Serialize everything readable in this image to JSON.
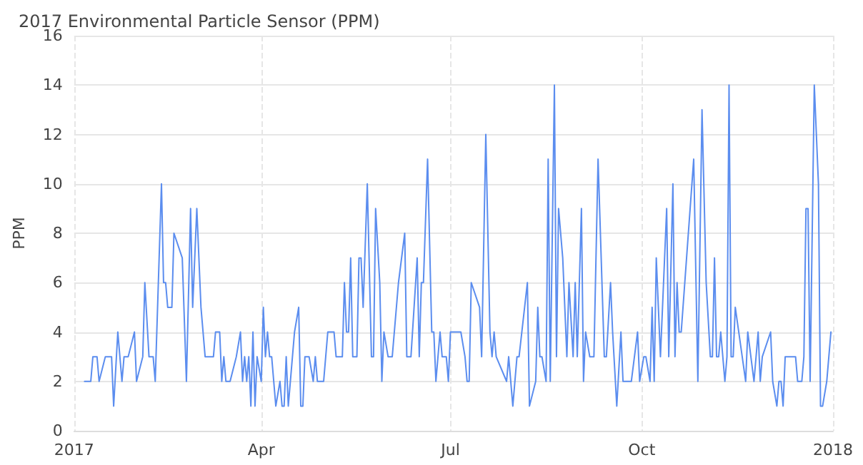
{
  "chart_data": {
    "type": "line",
    "title": "2017 Environmental Particle Sensor (PPM)",
    "ylabel": "PPM",
    "xlim": [
      "2017-01-01",
      "2018-01-01"
    ],
    "xticks": [
      {
        "value": "2017-01-01",
        "label": "2017"
      },
      {
        "value": "2017-04-01",
        "label": "Apr"
      },
      {
        "value": "2017-07-01",
        "label": "Jul"
      },
      {
        "value": "2017-10-01",
        "label": "Oct"
      },
      {
        "value": "2018-01-01",
        "label": "2018"
      }
    ],
    "ylim": [
      0,
      16
    ],
    "yticks": [
      0,
      2,
      4,
      6,
      8,
      10,
      12,
      14,
      16
    ],
    "grid": true,
    "marker": "none",
    "line_style": "solid",
    "series": [
      {
        "color": "#5b8def",
        "x": [
          "2017-01-06",
          "2017-01-09",
          "2017-01-10",
          "2017-01-12",
          "2017-01-13",
          "2017-01-16",
          "2017-01-19",
          "2017-01-20",
          "2017-01-22",
          "2017-01-24",
          "2017-01-25",
          "2017-01-27",
          "2017-01-30",
          "2017-01-31",
          "2017-02-03",
          "2017-02-04",
          "2017-02-06",
          "2017-02-08",
          "2017-02-09",
          "2017-02-12",
          "2017-02-13",
          "2017-02-14",
          "2017-02-15",
          "2017-02-17",
          "2017-02-18",
          "2017-02-22",
          "2017-02-24",
          "2017-02-26",
          "2017-02-27",
          "2017-03-01",
          "2017-03-03",
          "2017-03-05",
          "2017-03-09",
          "2017-03-10",
          "2017-03-12",
          "2017-03-13",
          "2017-03-14",
          "2017-03-15",
          "2017-03-17",
          "2017-03-20",
          "2017-03-22",
          "2017-03-23",
          "2017-03-24",
          "2017-03-25",
          "2017-03-26",
          "2017-03-27",
          "2017-03-28",
          "2017-03-29",
          "2017-03-30",
          "2017-04-01",
          "2017-04-02",
          "2017-04-03",
          "2017-04-04",
          "2017-04-05",
          "2017-04-06",
          "2017-04-08",
          "2017-04-10",
          "2017-04-11",
          "2017-04-12",
          "2017-04-13",
          "2017-04-14",
          "2017-04-17",
          "2017-04-19",
          "2017-04-20",
          "2017-04-21",
          "2017-04-22",
          "2017-04-24",
          "2017-04-26",
          "2017-04-27",
          "2017-04-28",
          "2017-04-29",
          "2017-05-01",
          "2017-05-02",
          "2017-05-03",
          "2017-05-06",
          "2017-05-07",
          "2017-05-10",
          "2017-05-11",
          "2017-05-12",
          "2017-05-13",
          "2017-05-14",
          "2017-05-15",
          "2017-05-17",
          "2017-05-18",
          "2017-05-19",
          "2017-05-20",
          "2017-05-22",
          "2017-05-24",
          "2017-05-25",
          "2017-05-26",
          "2017-05-28",
          "2017-05-29",
          "2017-05-30",
          "2017-06-01",
          "2017-06-03",
          "2017-06-06",
          "2017-06-09",
          "2017-06-10",
          "2017-06-12",
          "2017-06-15",
          "2017-06-16",
          "2017-06-17",
          "2017-06-18",
          "2017-06-20",
          "2017-06-22",
          "2017-06-23",
          "2017-06-24",
          "2017-06-26",
          "2017-06-27",
          "2017-06-29",
          "2017-06-30",
          "2017-07-01",
          "2017-07-06",
          "2017-07-08",
          "2017-07-09",
          "2017-07-10",
          "2017-07-11",
          "2017-07-15",
          "2017-07-16",
          "2017-07-18",
          "2017-07-20",
          "2017-07-21",
          "2017-07-22",
          "2017-07-23",
          "2017-07-28",
          "2017-07-29",
          "2017-07-31",
          "2017-08-02",
          "2017-08-03",
          "2017-08-07",
          "2017-08-08",
          "2017-08-11",
          "2017-08-12",
          "2017-08-13",
          "2017-08-14",
          "2017-08-16",
          "2017-08-17",
          "2017-08-18",
          "2017-08-20",
          "2017-08-21",
          "2017-08-22",
          "2017-08-24",
          "2017-08-26",
          "2017-08-27",
          "2017-08-29",
          "2017-08-30",
          "2017-08-31",
          "2017-09-02",
          "2017-09-03",
          "2017-09-04",
          "2017-09-06",
          "2017-09-08",
          "2017-09-10",
          "2017-09-13",
          "2017-09-14",
          "2017-09-16",
          "2017-09-17",
          "2017-09-19",
          "2017-09-21",
          "2017-09-22",
          "2017-09-26",
          "2017-09-29",
          "2017-09-30",
          "2017-10-02",
          "2017-10-03",
          "2017-10-05",
          "2017-10-06",
          "2017-10-07",
          "2017-10-08",
          "2017-10-09",
          "2017-10-10",
          "2017-10-13",
          "2017-10-14",
          "2017-10-16",
          "2017-10-17",
          "2017-10-18",
          "2017-10-19",
          "2017-10-20",
          "2017-10-26",
          "2017-10-28",
          "2017-10-30",
          "2017-11-01",
          "2017-11-03",
          "2017-11-04",
          "2017-11-05",
          "2017-11-06",
          "2017-11-07",
          "2017-11-08",
          "2017-11-10",
          "2017-11-11",
          "2017-11-12",
          "2017-11-13",
          "2017-11-14",
          "2017-11-15",
          "2017-11-20",
          "2017-11-21",
          "2017-11-24",
          "2017-11-26",
          "2017-11-27",
          "2017-11-28",
          "2017-12-02",
          "2017-12-03",
          "2017-12-05",
          "2017-12-06",
          "2017-12-07",
          "2017-12-08",
          "2017-12-09",
          "2017-12-14",
          "2017-12-15",
          "2017-12-17",
          "2017-12-18",
          "2017-12-19",
          "2017-12-20",
          "2017-12-21",
          "2017-12-23",
          "2017-12-25",
          "2017-12-26",
          "2017-12-27",
          "2017-12-29",
          "2017-12-31"
        ],
        "values": [
          2,
          2,
          3,
          3,
          2,
          3,
          3,
          1,
          4,
          2,
          3,
          3,
          4,
          2,
          3,
          6,
          3,
          3,
          2,
          10,
          6,
          6,
          5,
          5,
          8,
          7,
          2,
          9,
          5,
          9,
          5,
          3,
          3,
          4,
          4,
          2,
          3,
          2,
          2,
          3,
          4,
          2,
          3,
          2,
          3,
          1,
          4,
          1,
          3,
          2,
          5,
          3,
          4,
          3,
          3,
          1,
          2,
          1,
          1,
          3,
          1,
          4,
          5,
          1,
          1,
          3,
          3,
          2,
          3,
          2,
          2,
          2,
          3,
          4,
          4,
          3,
          3,
          6,
          4,
          4,
          7,
          3,
          3,
          7,
          7,
          5,
          10,
          3,
          3,
          9,
          6,
          2,
          4,
          3,
          3,
          6,
          8,
          3,
          3,
          7,
          3,
          6,
          6,
          11,
          4,
          4,
          2,
          4,
          3,
          3,
          2,
          4,
          4,
          3,
          2,
          2,
          6,
          5,
          3,
          12,
          4,
          3,
          4,
          3,
          2,
          3,
          1,
          3,
          3,
          6,
          1,
          2,
          5,
          3,
          3,
          2,
          11,
          2,
          14,
          3,
          9,
          7,
          3,
          6,
          3,
          6,
          3,
          9,
          2,
          4,
          3,
          3,
          11,
          3,
          3,
          6,
          4,
          1,
          4,
          2,
          2,
          4,
          2,
          3,
          3,
          2,
          5,
          2,
          7,
          5,
          3,
          9,
          3,
          10,
          3,
          6,
          4,
          4,
          11,
          2,
          13,
          6,
          3,
          3,
          7,
          3,
          3,
          4,
          2,
          3,
          14,
          3,
          3,
          5,
          2,
          4,
          2,
          4,
          2,
          3,
          4,
          2,
          1,
          2,
          2,
          1,
          3,
          3,
          2,
          2,
          3,
          9,
          9,
          2,
          14,
          10,
          1,
          1,
          2,
          4
        ]
      }
    ]
  }
}
